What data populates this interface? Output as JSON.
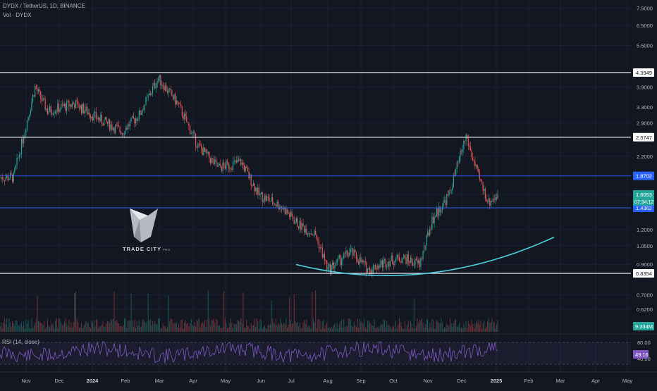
{
  "header": {
    "symbol": "DYDX / TetherUS, 1D, BINANCE",
    "volume": "Vol · DYDX"
  },
  "logo": {
    "text": "TRADE CITY",
    "sub": "PRO"
  },
  "colors": {
    "background": "#131722",
    "up": "#26a69a",
    "down": "#ef5350",
    "curve": "#4dd0e1",
    "blue_line": "#2962ff",
    "rsi": "#7e57c2"
  },
  "chart_data": [
    {
      "type": "candlestick",
      "price_scale": "log",
      "y_ticks": [
        "7.5000",
        "6.5000",
        "5.5000",
        "4.3949",
        "3.9000",
        "3.3000",
        "2.9000",
        "2.5747",
        "2.2000",
        "1.8702",
        "1.6053",
        "1.4362",
        "1.2000",
        "1.0500",
        "0.9000",
        "0.8354",
        "0.7000",
        "0.6200"
      ],
      "x_ticks": [
        "Nov",
        "Dec",
        "2024",
        "Feb",
        "Mar",
        "Apr",
        "May",
        "Jun",
        "Jul",
        "Aug",
        "Sep",
        "Oct",
        "Nov",
        "Dec",
        "2025",
        "Feb",
        "Mar",
        "Apr",
        "May"
      ],
      "series": [
        {
          "x": [
            "2023-11-01",
            "2023-11-20",
            "2023-12-01",
            "2023-12-25",
            "2024-01-15",
            "2024-02-05",
            "2024-02-20",
            "2024-03-08",
            "2024-03-25",
            "2024-04-12",
            "2024-04-30",
            "2024-05-20",
            "2024-06-05",
            "2024-06-25",
            "2024-07-10",
            "2024-07-25",
            "2024-08-05",
            "2024-08-25",
            "2024-09-10",
            "2024-09-25",
            "2024-10-10",
            "2024-10-25",
            "2024-11-05",
            "2024-11-20",
            "2024-12-05",
            "2024-12-15",
            "2024-12-25",
            "2025-01-02"
          ],
          "close": [
            1.85,
            3.9,
            3.2,
            3.4,
            3.0,
            2.7,
            3.1,
            4.2,
            3.4,
            2.4,
            2.0,
            2.1,
            1.6,
            1.45,
            1.25,
            1.15,
            0.86,
            1.0,
            0.86,
            0.92,
            0.95,
            0.9,
            1.3,
            1.6,
            2.6,
            1.9,
            1.5,
            1.6053
          ]
        }
      ],
      "horizontal_levels": [
        {
          "value": 4.3949,
          "label": "4.3949",
          "color": "white"
        },
        {
          "value": 2.5747,
          "label": "2.5747",
          "color": "white"
        },
        {
          "value": 1.8702,
          "label": "1.8702",
          "color": "blue"
        },
        {
          "value": 1.4362,
          "label": "1.4362",
          "color": "blue"
        },
        {
          "value": 0.8354,
          "label": "0.8354",
          "color": "white"
        }
      ],
      "last_price": {
        "value": "1.6053",
        "countdown": "07:34:12"
      }
    },
    {
      "type": "bar",
      "title": "Vol · DYDX",
      "last_value": "9.334M"
    },
    {
      "type": "line",
      "title": "RSI (14, close)",
      "y_ticks": [
        "80.00",
        "40.00"
      ],
      "last_value": "49.16"
    }
  ]
}
